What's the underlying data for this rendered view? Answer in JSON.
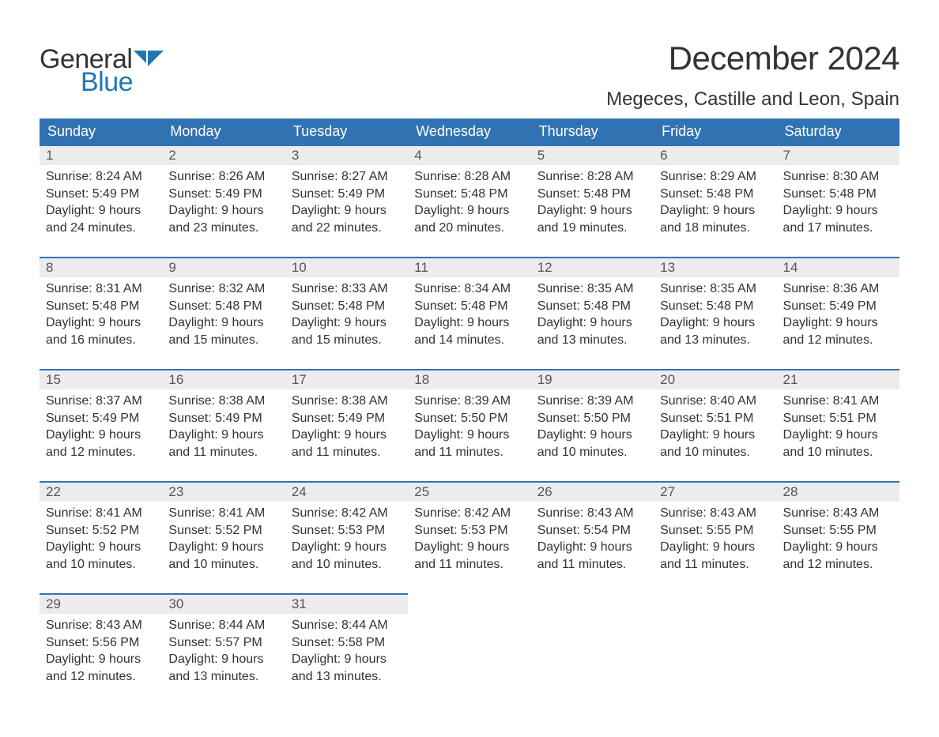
{
  "brand": {
    "part1": "General",
    "part2": "Blue",
    "flag_color": "#1f77b4"
  },
  "title": "December 2024",
  "location": "Megeces, Castille and Leon, Spain",
  "colors": {
    "header_bg": "#3173b2",
    "header_text": "#ffffff",
    "daynum_bg": "#ececec",
    "daynum_border": "#3173b2",
    "body_text": "#333333",
    "page_bg": "#ffffff"
  },
  "weekdays": [
    "Sunday",
    "Monday",
    "Tuesday",
    "Wednesday",
    "Thursday",
    "Friday",
    "Saturday"
  ],
  "weeks": [
    [
      {
        "n": "1",
        "sunrise": "Sunrise: 8:24 AM",
        "sunset": "Sunset: 5:49 PM",
        "dl1": "Daylight: 9 hours",
        "dl2": "and 24 minutes."
      },
      {
        "n": "2",
        "sunrise": "Sunrise: 8:26 AM",
        "sunset": "Sunset: 5:49 PM",
        "dl1": "Daylight: 9 hours",
        "dl2": "and 23 minutes."
      },
      {
        "n": "3",
        "sunrise": "Sunrise: 8:27 AM",
        "sunset": "Sunset: 5:49 PM",
        "dl1": "Daylight: 9 hours",
        "dl2": "and 22 minutes."
      },
      {
        "n": "4",
        "sunrise": "Sunrise: 8:28 AM",
        "sunset": "Sunset: 5:48 PM",
        "dl1": "Daylight: 9 hours",
        "dl2": "and 20 minutes."
      },
      {
        "n": "5",
        "sunrise": "Sunrise: 8:28 AM",
        "sunset": "Sunset: 5:48 PM",
        "dl1": "Daylight: 9 hours",
        "dl2": "and 19 minutes."
      },
      {
        "n": "6",
        "sunrise": "Sunrise: 8:29 AM",
        "sunset": "Sunset: 5:48 PM",
        "dl1": "Daylight: 9 hours",
        "dl2": "and 18 minutes."
      },
      {
        "n": "7",
        "sunrise": "Sunrise: 8:30 AM",
        "sunset": "Sunset: 5:48 PM",
        "dl1": "Daylight: 9 hours",
        "dl2": "and 17 minutes."
      }
    ],
    [
      {
        "n": "8",
        "sunrise": "Sunrise: 8:31 AM",
        "sunset": "Sunset: 5:48 PM",
        "dl1": "Daylight: 9 hours",
        "dl2": "and 16 minutes."
      },
      {
        "n": "9",
        "sunrise": "Sunrise: 8:32 AM",
        "sunset": "Sunset: 5:48 PM",
        "dl1": "Daylight: 9 hours",
        "dl2": "and 15 minutes."
      },
      {
        "n": "10",
        "sunrise": "Sunrise: 8:33 AM",
        "sunset": "Sunset: 5:48 PM",
        "dl1": "Daylight: 9 hours",
        "dl2": "and 15 minutes."
      },
      {
        "n": "11",
        "sunrise": "Sunrise: 8:34 AM",
        "sunset": "Sunset: 5:48 PM",
        "dl1": "Daylight: 9 hours",
        "dl2": "and 14 minutes."
      },
      {
        "n": "12",
        "sunrise": "Sunrise: 8:35 AM",
        "sunset": "Sunset: 5:48 PM",
        "dl1": "Daylight: 9 hours",
        "dl2": "and 13 minutes."
      },
      {
        "n": "13",
        "sunrise": "Sunrise: 8:35 AM",
        "sunset": "Sunset: 5:48 PM",
        "dl1": "Daylight: 9 hours",
        "dl2": "and 13 minutes."
      },
      {
        "n": "14",
        "sunrise": "Sunrise: 8:36 AM",
        "sunset": "Sunset: 5:49 PM",
        "dl1": "Daylight: 9 hours",
        "dl2": "and 12 minutes."
      }
    ],
    [
      {
        "n": "15",
        "sunrise": "Sunrise: 8:37 AM",
        "sunset": "Sunset: 5:49 PM",
        "dl1": "Daylight: 9 hours",
        "dl2": "and 12 minutes."
      },
      {
        "n": "16",
        "sunrise": "Sunrise: 8:38 AM",
        "sunset": "Sunset: 5:49 PM",
        "dl1": "Daylight: 9 hours",
        "dl2": "and 11 minutes."
      },
      {
        "n": "17",
        "sunrise": "Sunrise: 8:38 AM",
        "sunset": "Sunset: 5:49 PM",
        "dl1": "Daylight: 9 hours",
        "dl2": "and 11 minutes."
      },
      {
        "n": "18",
        "sunrise": "Sunrise: 8:39 AM",
        "sunset": "Sunset: 5:50 PM",
        "dl1": "Daylight: 9 hours",
        "dl2": "and 11 minutes."
      },
      {
        "n": "19",
        "sunrise": "Sunrise: 8:39 AM",
        "sunset": "Sunset: 5:50 PM",
        "dl1": "Daylight: 9 hours",
        "dl2": "and 10 minutes."
      },
      {
        "n": "20",
        "sunrise": "Sunrise: 8:40 AM",
        "sunset": "Sunset: 5:51 PM",
        "dl1": "Daylight: 9 hours",
        "dl2": "and 10 minutes."
      },
      {
        "n": "21",
        "sunrise": "Sunrise: 8:41 AM",
        "sunset": "Sunset: 5:51 PM",
        "dl1": "Daylight: 9 hours",
        "dl2": "and 10 minutes."
      }
    ],
    [
      {
        "n": "22",
        "sunrise": "Sunrise: 8:41 AM",
        "sunset": "Sunset: 5:52 PM",
        "dl1": "Daylight: 9 hours",
        "dl2": "and 10 minutes."
      },
      {
        "n": "23",
        "sunrise": "Sunrise: 8:41 AM",
        "sunset": "Sunset: 5:52 PM",
        "dl1": "Daylight: 9 hours",
        "dl2": "and 10 minutes."
      },
      {
        "n": "24",
        "sunrise": "Sunrise: 8:42 AM",
        "sunset": "Sunset: 5:53 PM",
        "dl1": "Daylight: 9 hours",
        "dl2": "and 10 minutes."
      },
      {
        "n": "25",
        "sunrise": "Sunrise: 8:42 AM",
        "sunset": "Sunset: 5:53 PM",
        "dl1": "Daylight: 9 hours",
        "dl2": "and 11 minutes."
      },
      {
        "n": "26",
        "sunrise": "Sunrise: 8:43 AM",
        "sunset": "Sunset: 5:54 PM",
        "dl1": "Daylight: 9 hours",
        "dl2": "and 11 minutes."
      },
      {
        "n": "27",
        "sunrise": "Sunrise: 8:43 AM",
        "sunset": "Sunset: 5:55 PM",
        "dl1": "Daylight: 9 hours",
        "dl2": "and 11 minutes."
      },
      {
        "n": "28",
        "sunrise": "Sunrise: 8:43 AM",
        "sunset": "Sunset: 5:55 PM",
        "dl1": "Daylight: 9 hours",
        "dl2": "and 12 minutes."
      }
    ],
    [
      {
        "n": "29",
        "sunrise": "Sunrise: 8:43 AM",
        "sunset": "Sunset: 5:56 PM",
        "dl1": "Daylight: 9 hours",
        "dl2": "and 12 minutes."
      },
      {
        "n": "30",
        "sunrise": "Sunrise: 8:44 AM",
        "sunset": "Sunset: 5:57 PM",
        "dl1": "Daylight: 9 hours",
        "dl2": "and 13 minutes."
      },
      {
        "n": "31",
        "sunrise": "Sunrise: 8:44 AM",
        "sunset": "Sunset: 5:58 PM",
        "dl1": "Daylight: 9 hours",
        "dl2": "and 13 minutes."
      },
      null,
      null,
      null,
      null
    ]
  ]
}
